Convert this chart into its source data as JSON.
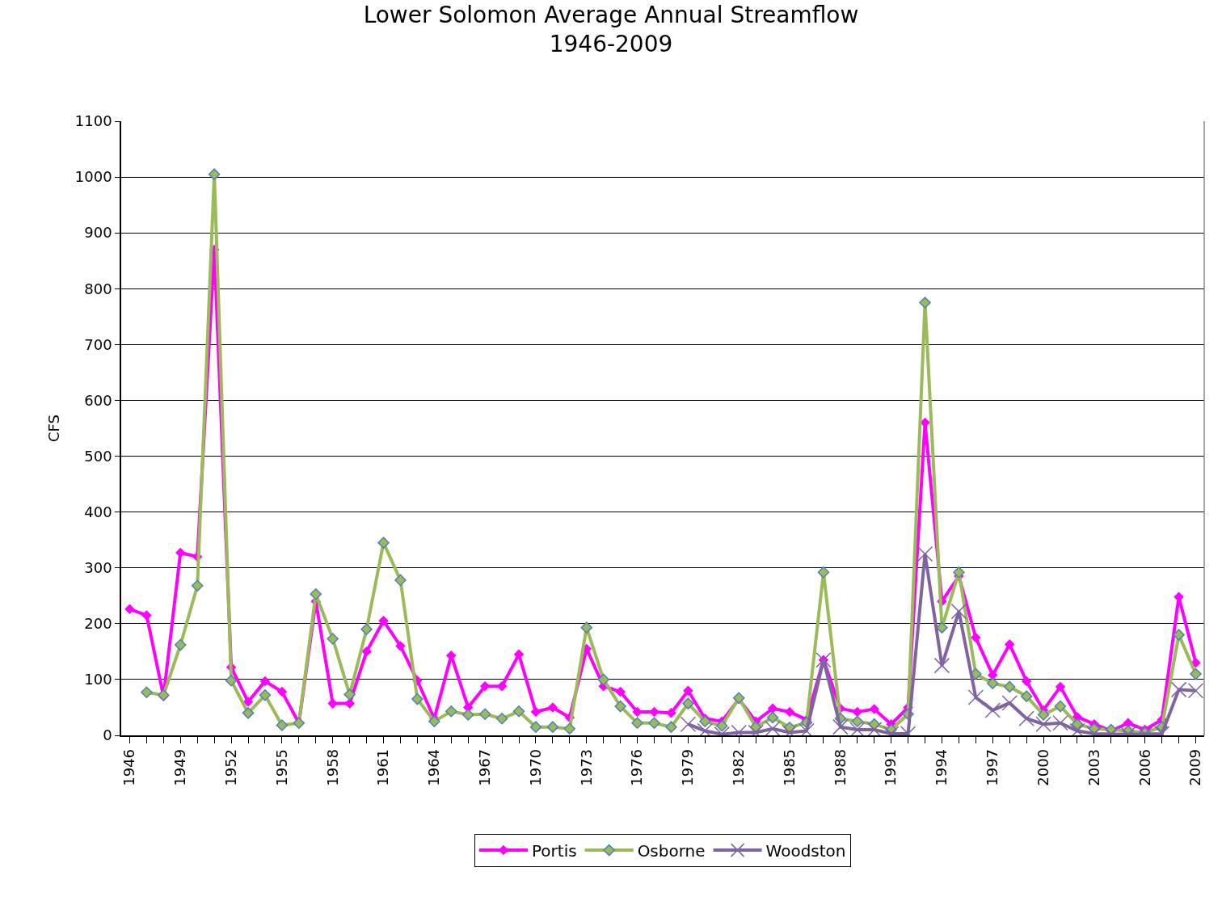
{
  "chart_data": {
    "type": "line",
    "title": "Lower Solomon Average Annual Streamflow\n1946-2009",
    "ylabel": "CFS",
    "x": [
      1946,
      1947,
      1948,
      1949,
      1950,
      1951,
      1952,
      1953,
      1954,
      1955,
      1956,
      1957,
      1958,
      1959,
      1960,
      1961,
      1962,
      1963,
      1964,
      1965,
      1966,
      1967,
      1968,
      1969,
      1970,
      1971,
      1972,
      1973,
      1974,
      1975,
      1976,
      1977,
      1978,
      1979,
      1980,
      1981,
      1982,
      1983,
      1984,
      1985,
      1986,
      1987,
      1988,
      1989,
      1990,
      1991,
      1992,
      1993,
      1994,
      1995,
      1996,
      1997,
      1998,
      1999,
      2000,
      2001,
      2002,
      2003,
      2004,
      2005,
      2006,
      2007,
      2008,
      2009
    ],
    "series": [
      {
        "name": "Portis",
        "color": "#ff00ff",
        "marker": "diamond",
        "values": [
          226,
          215,
          70,
          327,
          320,
          870,
          122,
          60,
          97,
          78,
          22,
          240,
          57,
          57,
          150,
          205,
          160,
          98,
          30,
          143,
          50,
          88,
          88,
          145,
          42,
          50,
          32,
          155,
          88,
          78,
          42,
          42,
          40,
          80,
          30,
          25,
          65,
          25,
          48,
          42,
          28,
          135,
          48,
          42,
          47,
          20,
          50,
          560,
          240,
          285,
          175,
          108,
          163,
          97,
          45,
          87,
          33,
          20,
          8,
          22,
          10,
          28,
          248,
          130
        ]
      },
      {
        "name": "Osborne",
        "color": "#9bbb59",
        "marker": "diamond",
        "x": [
          1947,
          1948,
          1949,
          1950,
          1951,
          1952,
          1953,
          1954,
          1955,
          1956,
          1957,
          1958,
          1959,
          1960,
          1961,
          1962,
          1963,
          1964,
          1965,
          1966,
          1967,
          1968,
          1969,
          1970,
          1971,
          1972,
          1973,
          1974,
          1975,
          1976,
          1977,
          1978,
          1979,
          1980,
          1981,
          1982,
          1983,
          1984,
          1985,
          1986,
          1987,
          1988,
          1989,
          1990,
          1991,
          1992,
          1993,
          1994,
          1995,
          1996,
          1997,
          1998,
          1999,
          2000,
          2001,
          2002,
          2003,
          2004,
          2005,
          2006,
          2007,
          2008,
          2009
        ],
        "values": [
          77,
          72,
          162,
          268,
          1005,
          98,
          40,
          72,
          18,
          22,
          253,
          173,
          73,
          190,
          345,
          278,
          65,
          25,
          43,
          37,
          38,
          30,
          43,
          15,
          15,
          12,
          193,
          100,
          52,
          22,
          22,
          15,
          57,
          25,
          17,
          67,
          15,
          32,
          14,
          23,
          292,
          30,
          25,
          20,
          10,
          38,
          775,
          193,
          292,
          110,
          93,
          87,
          70,
          37,
          52,
          20,
          12,
          10,
          8,
          5,
          15,
          180,
          110
        ]
      },
      {
        "name": "Woodston",
        "color": "#8064a2",
        "marker": "cross",
        "x": [
          1979,
          1980,
          1981,
          1982,
          1983,
          1984,
          1985,
          1986,
          1987,
          1988,
          1989,
          1990,
          1991,
          1992,
          1993,
          1994,
          1995,
          1996,
          1997,
          1998,
          1999,
          2000,
          2001,
          2002,
          2003,
          2004,
          2005,
          2006,
          2007,
          2008,
          2009
        ],
        "values": [
          20,
          8,
          2,
          5,
          5,
          12,
          5,
          8,
          135,
          15,
          10,
          10,
          3,
          3,
          325,
          125,
          222,
          68,
          45,
          58,
          30,
          20,
          22,
          8,
          3,
          2,
          2,
          2,
          3,
          82,
          80
        ]
      }
    ],
    "xlim": [
      1945.5,
      2009.5
    ],
    "xticks": [
      1946,
      1949,
      1952,
      1955,
      1958,
      1961,
      1964,
      1967,
      1970,
      1973,
      1976,
      1979,
      1982,
      1985,
      1988,
      1991,
      1994,
      1997,
      2000,
      2003,
      2006,
      2009
    ],
    "ylim": [
      0,
      1100
    ],
    "yticks": [
      0,
      100,
      200,
      300,
      400,
      500,
      600,
      700,
      800,
      900,
      1000,
      1100
    ],
    "grid": "y",
    "legend": "bottom",
    "line_style": "solid"
  }
}
